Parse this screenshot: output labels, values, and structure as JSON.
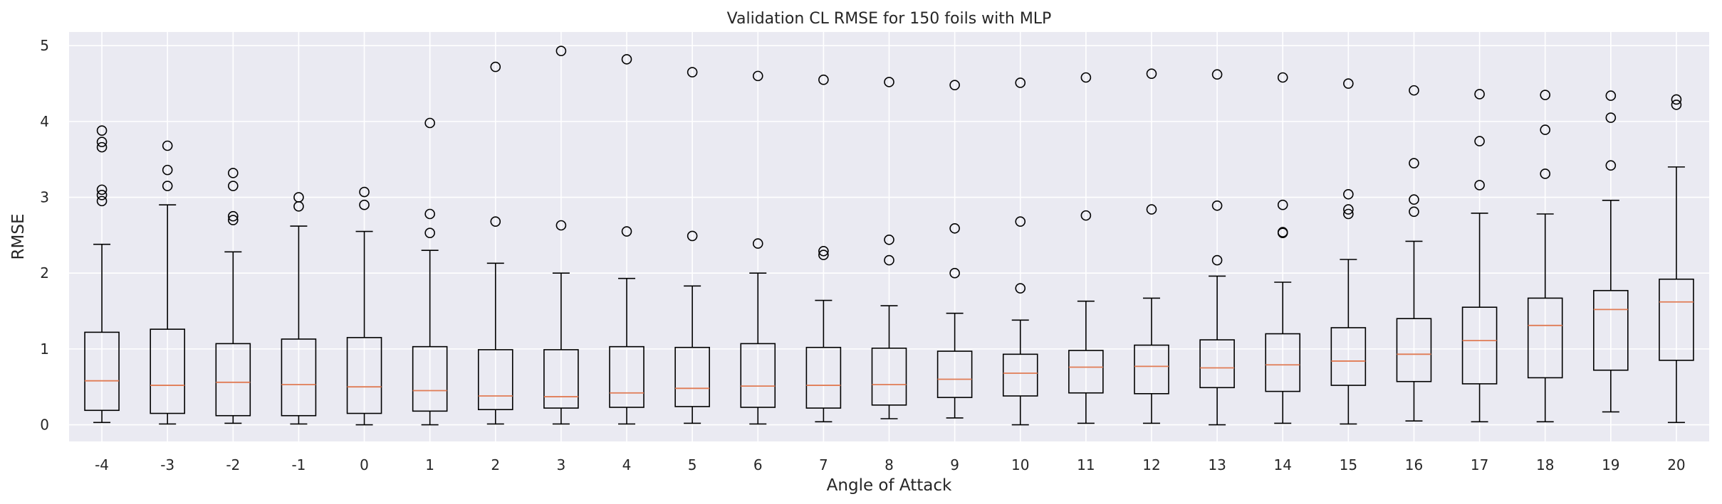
{
  "chart_data": {
    "type": "box",
    "title": "Validation CL RMSE for 150 foils with MLP",
    "xlabel": "Angle of Attack",
    "ylabel": "RMSE",
    "ylim": [
      -0.22,
      5.18
    ],
    "yticks": [
      0,
      1,
      2,
      3,
      4,
      5
    ],
    "grid": true,
    "colors": {
      "background": "#eaeaf2",
      "grid": "#ffffff",
      "box": "#000000",
      "median": "#e07b54",
      "text": "#262626"
    },
    "categories": [
      "-4",
      "-3",
      "-2",
      "-1",
      "0",
      "1",
      "2",
      "3",
      "4",
      "5",
      "6",
      "7",
      "8",
      "9",
      "10",
      "11",
      "12",
      "13",
      "14",
      "15",
      "16",
      "17",
      "18",
      "19",
      "20"
    ],
    "boxes": [
      {
        "min": 0.03,
        "q1": 0.19,
        "median": 0.58,
        "q3": 1.22,
        "max": 2.38,
        "outliers": [
          2.95,
          3.03,
          3.1,
          3.66,
          3.73,
          3.88
        ]
      },
      {
        "min": 0.01,
        "q1": 0.15,
        "median": 0.52,
        "q3": 1.26,
        "max": 2.9,
        "outliers": [
          3.15,
          3.36,
          3.68
        ]
      },
      {
        "min": 0.02,
        "q1": 0.12,
        "median": 0.56,
        "q3": 1.07,
        "max": 2.28,
        "outliers": [
          2.7,
          2.75,
          3.15,
          3.32
        ]
      },
      {
        "min": 0.01,
        "q1": 0.12,
        "median": 0.53,
        "q3": 1.13,
        "max": 2.62,
        "outliers": [
          2.88,
          3.0
        ]
      },
      {
        "min": 0.0,
        "q1": 0.15,
        "median": 0.5,
        "q3": 1.15,
        "max": 2.55,
        "outliers": [
          2.9,
          3.07
        ]
      },
      {
        "min": 0.0,
        "q1": 0.18,
        "median": 0.45,
        "q3": 1.03,
        "max": 2.3,
        "outliers": [
          2.53,
          2.78,
          3.98
        ]
      },
      {
        "min": 0.01,
        "q1": 0.2,
        "median": 0.38,
        "q3": 0.99,
        "max": 2.13,
        "outliers": [
          2.68,
          4.72
        ]
      },
      {
        "min": 0.01,
        "q1": 0.22,
        "median": 0.37,
        "q3": 0.99,
        "max": 2.0,
        "outliers": [
          2.63,
          4.93
        ]
      },
      {
        "min": 0.01,
        "q1": 0.23,
        "median": 0.42,
        "q3": 1.03,
        "max": 1.93,
        "outliers": [
          2.55,
          4.82
        ]
      },
      {
        "min": 0.02,
        "q1": 0.24,
        "median": 0.48,
        "q3": 1.02,
        "max": 1.83,
        "outliers": [
          2.49,
          4.65
        ]
      },
      {
        "min": 0.01,
        "q1": 0.23,
        "median": 0.51,
        "q3": 1.07,
        "max": 2.0,
        "outliers": [
          2.39,
          4.6
        ]
      },
      {
        "min": 0.04,
        "q1": 0.22,
        "median": 0.52,
        "q3": 1.02,
        "max": 1.64,
        "outliers": [
          2.24,
          2.29,
          4.55
        ]
      },
      {
        "min": 0.08,
        "q1": 0.26,
        "median": 0.53,
        "q3": 1.01,
        "max": 1.57,
        "outliers": [
          2.17,
          2.44,
          4.52
        ]
      },
      {
        "min": 0.09,
        "q1": 0.36,
        "median": 0.6,
        "q3": 0.97,
        "max": 1.47,
        "outliers": [
          2.0,
          2.59,
          4.48
        ]
      },
      {
        "min": 0.0,
        "q1": 0.38,
        "median": 0.68,
        "q3": 0.93,
        "max": 1.38,
        "outliers": [
          1.8,
          2.68,
          4.51
        ]
      },
      {
        "min": 0.02,
        "q1": 0.42,
        "median": 0.76,
        "q3": 0.98,
        "max": 1.63,
        "outliers": [
          2.76,
          4.58
        ]
      },
      {
        "min": 0.02,
        "q1": 0.41,
        "median": 0.77,
        "q3": 1.05,
        "max": 1.67,
        "outliers": [
          2.84,
          4.63
        ]
      },
      {
        "min": 0.0,
        "q1": 0.49,
        "median": 0.75,
        "q3": 1.12,
        "max": 1.96,
        "outliers": [
          2.17,
          2.89,
          4.62
        ]
      },
      {
        "min": 0.02,
        "q1": 0.44,
        "median": 0.79,
        "q3": 1.2,
        "max": 1.88,
        "outliers": [
          2.53,
          2.54,
          2.9,
          4.58
        ]
      },
      {
        "min": 0.01,
        "q1": 0.52,
        "median": 0.84,
        "q3": 1.28,
        "max": 2.18,
        "outliers": [
          2.78,
          2.84,
          3.04,
          4.5
        ]
      },
      {
        "min": 0.05,
        "q1": 0.57,
        "median": 0.93,
        "q3": 1.4,
        "max": 2.42,
        "outliers": [
          2.81,
          2.97,
          3.45,
          4.41
        ]
      },
      {
        "min": 0.04,
        "q1": 0.54,
        "median": 1.11,
        "q3": 1.55,
        "max": 2.79,
        "outliers": [
          3.16,
          3.74,
          4.36
        ]
      },
      {
        "min": 0.04,
        "q1": 0.62,
        "median": 1.31,
        "q3": 1.67,
        "max": 2.78,
        "outliers": [
          3.31,
          3.89,
          4.35
        ]
      },
      {
        "min": 0.17,
        "q1": 0.72,
        "median": 1.52,
        "q3": 1.77,
        "max": 2.96,
        "outliers": [
          3.42,
          4.05,
          4.34
        ]
      },
      {
        "min": 0.03,
        "q1": 0.85,
        "median": 1.62,
        "q3": 1.92,
        "max": 3.4,
        "outliers": [
          4.22,
          4.29
        ]
      }
    ]
  }
}
